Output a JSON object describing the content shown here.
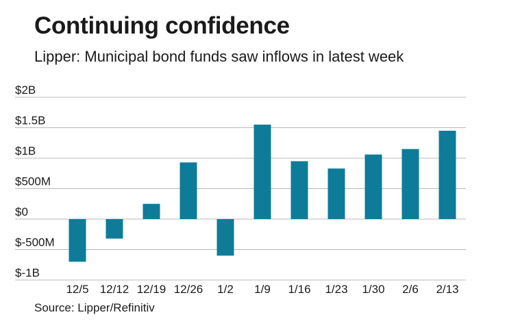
{
  "chart_data": {
    "type": "bar",
    "title": "Continuing confidence",
    "subtitle": "Lipper: Municipal bond funds saw inflows in latest week",
    "source": "Source: Lipper/Refinitiv",
    "categories": [
      "12/5",
      "12/12",
      "12/19",
      "12/26",
      "1/2",
      "1/9",
      "1/16",
      "1/23",
      "1/30",
      "2/6",
      "2/13"
    ],
    "values": [
      -0.7,
      -0.32,
      0.25,
      0.93,
      -0.6,
      1.55,
      0.95,
      0.83,
      1.06,
      1.15,
      1.45
    ],
    "unit": "billions USD",
    "ylim": [
      -1,
      2
    ],
    "yticks": [
      2,
      1.5,
      1,
      0.5,
      0,
      -0.5,
      -1
    ],
    "ytick_labels": [
      "$2B",
      "$1.5B",
      "$1B",
      "$500M",
      "$0",
      "$-500M",
      "$-1B"
    ],
    "xlabel": "",
    "ylabel": "",
    "grid": true,
    "bar_color": "#0e7c99",
    "grid_color": "#b8b8b8"
  }
}
